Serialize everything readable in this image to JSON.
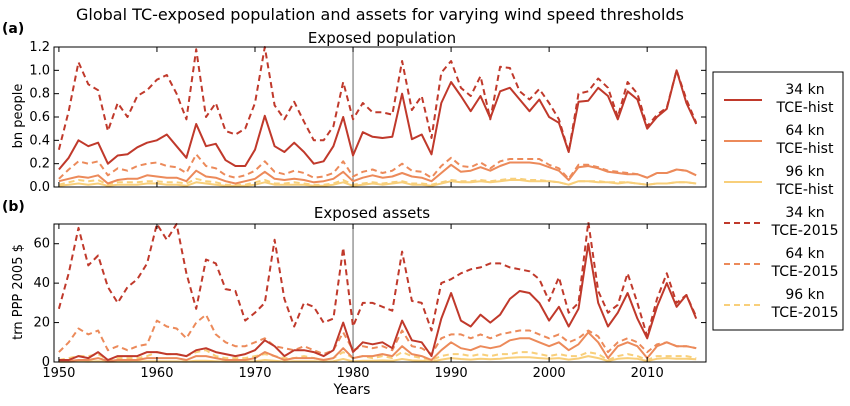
{
  "figure": {
    "title": "Global TC-exposed population and assets for varying wind speed thresholds",
    "x_axis_label": "Years"
  },
  "legend": [
    {
      "line1": "34 kn",
      "line2": "TCE-hist",
      "color": "#c0392b",
      "dashed": false
    },
    {
      "line1": "64 kn",
      "line2": "TCE-hist",
      "color": "#ec8a5a",
      "dashed": false
    },
    {
      "line1": "96 kn",
      "line2": "TCE-hist",
      "color": "#f8cf7a",
      "dashed": false
    },
    {
      "line1": "34 kn",
      "line2": "TCE-2015",
      "color": "#c0392b",
      "dashed": true
    },
    {
      "line1": "64 kn",
      "line2": "TCE-2015",
      "color": "#ec8a5a",
      "dashed": true
    },
    {
      "line1": "96 kn",
      "line2": "TCE-2015",
      "color": "#f8cf7a",
      "dashed": true
    }
  ],
  "chart_data": [
    {
      "type": "line",
      "panel_label": "(a)",
      "title": "Exposed population",
      "ylabel": "bn people",
      "xlim": [
        1949.5,
        2016
      ],
      "ylim": [
        0,
        1.2
      ],
      "xticks": [
        1950,
        1960,
        1970,
        1980,
        1990,
        2000,
        2010
      ],
      "yticks": [
        "0.0",
        "0.2",
        "0.4",
        "0.6",
        "0.8",
        "1.0",
        "1.2"
      ],
      "x_start": 1950,
      "vline_x": 1980,
      "series": [
        {
          "name": "34 kn TCE-hist",
          "color": "#c0392b",
          "dashed": false,
          "values": [
            0.15,
            0.25,
            0.4,
            0.35,
            0.38,
            0.2,
            0.27,
            0.28,
            0.34,
            0.38,
            0.4,
            0.45,
            0.35,
            0.25,
            0.54,
            0.35,
            0.37,
            0.23,
            0.18,
            0.18,
            0.32,
            0.61,
            0.35,
            0.3,
            0.38,
            0.3,
            0.2,
            0.22,
            0.35,
            0.6,
            0.27,
            0.47,
            0.43,
            0.42,
            0.43,
            0.8,
            0.41,
            0.45,
            0.28,
            0.72,
            0.9,
            0.78,
            0.65,
            0.78,
            0.59,
            0.82,
            0.85,
            0.75,
            0.65,
            0.75,
            0.6,
            0.55,
            0.3,
            0.73,
            0.74,
            0.85,
            0.78,
            0.58,
            0.82,
            0.75,
            0.5,
            0.6,
            0.67,
            1.0,
            0.72,
            0.54
          ]
        },
        {
          "name": "64 kn TCE-hist",
          "color": "#ec8a5a",
          "dashed": false,
          "values": [
            0.05,
            0.07,
            0.09,
            0.08,
            0.1,
            0.03,
            0.06,
            0.07,
            0.07,
            0.1,
            0.09,
            0.08,
            0.08,
            0.05,
            0.14,
            0.09,
            0.08,
            0.05,
            0.03,
            0.05,
            0.07,
            0.13,
            0.07,
            0.06,
            0.07,
            0.06,
            0.04,
            0.05,
            0.07,
            0.13,
            0.05,
            0.08,
            0.1,
            0.08,
            0.09,
            0.12,
            0.09,
            0.08,
            0.05,
            0.12,
            0.19,
            0.13,
            0.14,
            0.17,
            0.14,
            0.18,
            0.21,
            0.21,
            0.21,
            0.2,
            0.17,
            0.14,
            0.06,
            0.17,
            0.18,
            0.16,
            0.13,
            0.12,
            0.11,
            0.11,
            0.08,
            0.12,
            0.12,
            0.15,
            0.14,
            0.1
          ]
        },
        {
          "name": "96 kn TCE-hist",
          "color": "#f8cf7a",
          "dashed": false,
          "values": [
            0.01,
            0.02,
            0.03,
            0.02,
            0.03,
            0.01,
            0.02,
            0.02,
            0.02,
            0.03,
            0.03,
            0.02,
            0.02,
            0.01,
            0.04,
            0.03,
            0.02,
            0.01,
            0.01,
            0.01,
            0.02,
            0.04,
            0.02,
            0.02,
            0.02,
            0.02,
            0.01,
            0.01,
            0.02,
            0.04,
            0.01,
            0.02,
            0.03,
            0.02,
            0.03,
            0.04,
            0.02,
            0.02,
            0.01,
            0.03,
            0.05,
            0.04,
            0.04,
            0.05,
            0.04,
            0.05,
            0.06,
            0.06,
            0.05,
            0.05,
            0.05,
            0.04,
            0.02,
            0.05,
            0.05,
            0.04,
            0.04,
            0.03,
            0.04,
            0.03,
            0.02,
            0.03,
            0.03,
            0.04,
            0.04,
            0.03
          ]
        },
        {
          "name": "34 kn TCE-2015",
          "color": "#c0392b",
          "dashed": true,
          "values": [
            0.32,
            0.65,
            1.07,
            0.88,
            0.83,
            0.48,
            0.72,
            0.6,
            0.78,
            0.83,
            0.92,
            0.96,
            0.8,
            0.58,
            1.18,
            0.6,
            0.72,
            0.48,
            0.45,
            0.5,
            0.72,
            1.2,
            0.7,
            0.58,
            0.73,
            0.56,
            0.4,
            0.4,
            0.52,
            0.9,
            0.58,
            0.72,
            0.64,
            0.64,
            0.62,
            1.08,
            0.66,
            0.78,
            0.42,
            0.98,
            1.08,
            0.85,
            0.78,
            0.95,
            0.58,
            1.03,
            1.02,
            0.82,
            0.75,
            0.84,
            0.72,
            0.58,
            0.3,
            0.8,
            0.82,
            0.93,
            0.85,
            0.6,
            0.9,
            0.8,
            0.52,
            0.62,
            0.68,
            1.0,
            0.75,
            0.55
          ]
        },
        {
          "name": "64 kn TCE-2015",
          "color": "#ec8a5a",
          "dashed": true,
          "values": [
            0.07,
            0.15,
            0.22,
            0.2,
            0.22,
            0.1,
            0.16,
            0.14,
            0.18,
            0.2,
            0.21,
            0.18,
            0.17,
            0.12,
            0.28,
            0.18,
            0.16,
            0.1,
            0.08,
            0.1,
            0.14,
            0.22,
            0.13,
            0.11,
            0.14,
            0.12,
            0.08,
            0.09,
            0.12,
            0.22,
            0.09,
            0.13,
            0.15,
            0.12,
            0.14,
            0.2,
            0.14,
            0.13,
            0.08,
            0.18,
            0.25,
            0.18,
            0.17,
            0.21,
            0.16,
            0.22,
            0.24,
            0.24,
            0.24,
            0.24,
            0.19,
            0.16,
            0.07,
            0.19,
            0.19,
            0.17,
            0.14,
            0.13,
            0.12,
            0.11,
            0.08,
            0.12,
            0.12,
            0.15,
            0.14,
            0.1
          ]
        },
        {
          "name": "96 kn TCE-2015",
          "color": "#f8cf7a",
          "dashed": true,
          "values": [
            0.02,
            0.04,
            0.06,
            0.05,
            0.06,
            0.02,
            0.04,
            0.04,
            0.04,
            0.05,
            0.05,
            0.04,
            0.04,
            0.03,
            0.07,
            0.05,
            0.04,
            0.02,
            0.02,
            0.02,
            0.04,
            0.06,
            0.03,
            0.03,
            0.04,
            0.03,
            0.02,
            0.02,
            0.03,
            0.06,
            0.02,
            0.03,
            0.04,
            0.03,
            0.04,
            0.05,
            0.03,
            0.03,
            0.02,
            0.04,
            0.06,
            0.05,
            0.05,
            0.06,
            0.05,
            0.06,
            0.07,
            0.07,
            0.06,
            0.06,
            0.05,
            0.04,
            0.02,
            0.05,
            0.05,
            0.05,
            0.04,
            0.04,
            0.04,
            0.03,
            0.02,
            0.03,
            0.03,
            0.04,
            0.04,
            0.03
          ]
        }
      ]
    },
    {
      "type": "line",
      "panel_label": "(b)",
      "title": "Exposed assets",
      "ylabel": "trn PPP 2005 $",
      "xlim": [
        1949.5,
        2016
      ],
      "ylim": [
        0,
        70
      ],
      "xticks": [
        1950,
        1960,
        1970,
        1980,
        1990,
        2000,
        2010
      ],
      "yticks": [
        "0",
        "20",
        "40",
        "60"
      ],
      "x_start": 1950,
      "vline_x": 1980,
      "series": [
        {
          "name": "34 kn TCE-hist",
          "color": "#c0392b",
          "dashed": false,
          "values": [
            1,
            1,
            3,
            2,
            5,
            1,
            3,
            3,
            3,
            5,
            5,
            4,
            4,
            3,
            6,
            7,
            5,
            4,
            3,
            4,
            6,
            11,
            8,
            3,
            6,
            6,
            5,
            3,
            6,
            20,
            5,
            10,
            9,
            10,
            7,
            21,
            11,
            10,
            3,
            22,
            35,
            21,
            18,
            24,
            20,
            24,
            32,
            36,
            35,
            30,
            21,
            28,
            18,
            27,
            60,
            30,
            18,
            25,
            35,
            22,
            12,
            28,
            40,
            28,
            34,
            22
          ]
        },
        {
          "name": "64 kn TCE-hist",
          "color": "#ec8a5a",
          "dashed": false,
          "values": [
            0.5,
            0.5,
            1,
            1,
            2,
            0.5,
            1,
            1,
            1,
            2,
            2,
            2,
            2,
            1,
            3,
            3,
            2,
            1,
            1,
            1,
            2,
            5,
            3,
            1,
            2,
            2,
            2,
            1,
            2,
            7,
            2,
            3,
            3,
            4,
            3,
            8,
            4,
            3,
            1,
            6,
            10,
            7,
            6,
            8,
            7,
            8,
            11,
            12,
            12,
            10,
            8,
            10,
            6,
            9,
            15,
            10,
            2,
            8,
            10,
            8,
            2,
            8,
            10,
            8,
            8,
            7
          ]
        },
        {
          "name": "96 kn TCE-hist",
          "color": "#f8cf7a",
          "dashed": false,
          "values": [
            0.1,
            0.1,
            0.3,
            0.2,
            0.4,
            0.1,
            0.2,
            0.2,
            0.3,
            0.4,
            0.4,
            0.3,
            0.3,
            0.2,
            0.6,
            0.6,
            0.4,
            0.2,
            0.2,
            0.3,
            0.4,
            1.0,
            0.6,
            0.2,
            0.4,
            0.4,
            0.4,
            0.2,
            0.4,
            1.5,
            0.3,
            0.6,
            0.6,
            0.8,
            0.6,
            1.5,
            0.8,
            0.6,
            0.2,
            1.2,
            2.0,
            1.5,
            1.2,
            1.6,
            1.4,
            1.6,
            2.2,
            2.4,
            2.4,
            2.0,
            1.6,
            2.0,
            1.2,
            1.8,
            3.0,
            2.0,
            0.5,
            1.6,
            2.0,
            1.6,
            0.5,
            1.6,
            2.0,
            1.6,
            1.6,
            1.4
          ]
        },
        {
          "name": "34 kn TCE-2015",
          "color": "#c0392b",
          "dashed": true,
          "values": [
            27,
            45,
            68,
            49,
            54,
            38,
            30,
            38,
            42,
            50,
            70,
            62,
            70,
            45,
            27,
            52,
            50,
            37,
            36,
            21,
            25,
            30,
            62,
            32,
            18,
            30,
            28,
            20,
            22,
            58,
            18,
            30,
            30,
            28,
            26,
            56,
            31,
            30,
            16,
            40,
            42,
            45,
            47,
            48,
            50,
            50,
            48,
            47,
            46,
            42,
            31,
            43,
            25,
            30,
            71,
            36,
            25,
            29,
            45,
            30,
            13,
            32,
            45,
            30,
            34,
            23
          ]
        },
        {
          "name": "64 kn TCE-2015",
          "color": "#ec8a5a",
          "dashed": true,
          "values": [
            5,
            10,
            17,
            14,
            16,
            6,
            8,
            6,
            8,
            9,
            21,
            18,
            17,
            12,
            20,
            24,
            14,
            10,
            8,
            8,
            10,
            12,
            8,
            7,
            6,
            8,
            6,
            4,
            6,
            15,
            6,
            8,
            7,
            8,
            6,
            16,
            8,
            7,
            4,
            12,
            14,
            14,
            12,
            14,
            12,
            14,
            15,
            16,
            16,
            14,
            12,
            14,
            10,
            12,
            16,
            13,
            5,
            10,
            12,
            10,
            5,
            9,
            10,
            8,
            8,
            7
          ]
        },
        {
          "name": "96 kn TCE-2015",
          "color": "#f8cf7a",
          "dashed": true,
          "values": [
            1,
            2,
            3,
            3,
            4,
            1,
            2,
            2,
            2,
            3,
            5,
            4,
            4,
            3,
            5,
            6,
            3,
            2,
            2,
            2,
            3,
            4,
            3,
            2,
            2,
            3,
            2,
            1,
            2,
            5,
            2,
            3,
            2,
            3,
            2,
            5,
            3,
            2,
            1,
            3,
            4,
            4,
            3,
            4,
            3,
            4,
            4,
            5,
            5,
            4,
            3,
            4,
            3,
            3,
            5,
            4,
            1,
            3,
            4,
            3,
            1,
            3,
            3,
            3,
            3,
            2
          ]
        }
      ]
    }
  ]
}
